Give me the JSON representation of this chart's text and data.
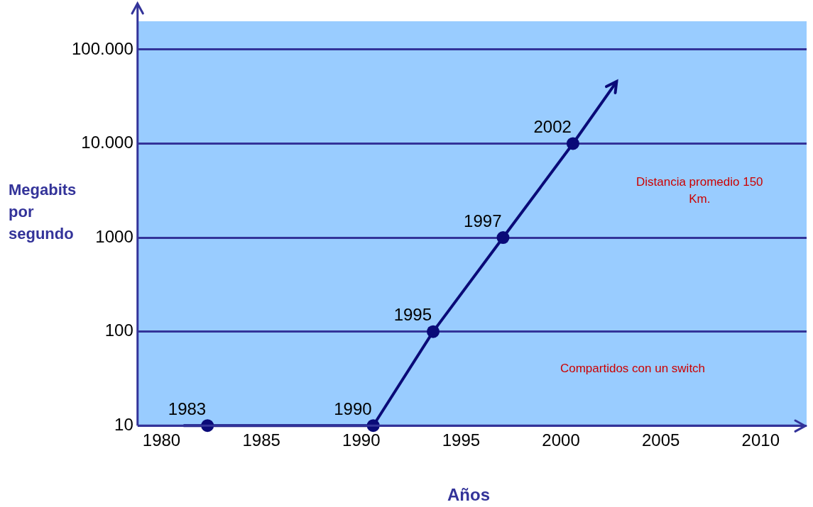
{
  "chart_data": {
    "type": "line",
    "xlabel": "Años",
    "ylabel": "Megabits por segundo",
    "xlim": [
      1978.8,
      2012.3
    ],
    "xticks": [
      1980,
      1985,
      1990,
      1995,
      2000,
      2005,
      2010
    ],
    "ylim": [
      10,
      200000
    ],
    "yticks": [
      10,
      100,
      {
        "value": 1000,
        "label": "1000"
      },
      {
        "value": 10000,
        "label": "10.000"
      },
      {
        "value": 100000,
        "label": "100.000"
      }
    ],
    "log": "y",
    "grid": "y",
    "legend": false,
    "line_style": "solid",
    "series": [
      {
        "color": "#0a0a78",
        "marker": "none",
        "x": [
          1981.1,
          1982.3,
          1990.6,
          1993.6,
          1997.1,
          2000.6,
          2002.8
        ],
        "values": [
          10,
          10,
          10,
          100,
          1000,
          10000,
          46000
        ]
      },
      {
        "type": "scatter",
        "color": "#0a0a78",
        "marker": "circle",
        "x": [
          1982.3,
          1990.6,
          1993.6,
          1997.1,
          2000.6
        ],
        "values": [
          10,
          10,
          100,
          1000,
          10000
        ]
      }
    ],
    "annotations": [
      {
        "text": "1983",
        "x": 1982.3,
        "y": 10
      },
      {
        "text": "1990",
        "x": 1990.6,
        "y": 10
      },
      {
        "text": "1995",
        "x": 1993.6,
        "y": 100
      },
      {
        "text": "1997",
        "x": 1997.1,
        "y": 1000
      },
      {
        "text": "2002",
        "x": 2000.6,
        "y": 10000
      },
      "Distancia promedio 150 Km.",
      "Compartidos con un switch"
    ]
  }
}
